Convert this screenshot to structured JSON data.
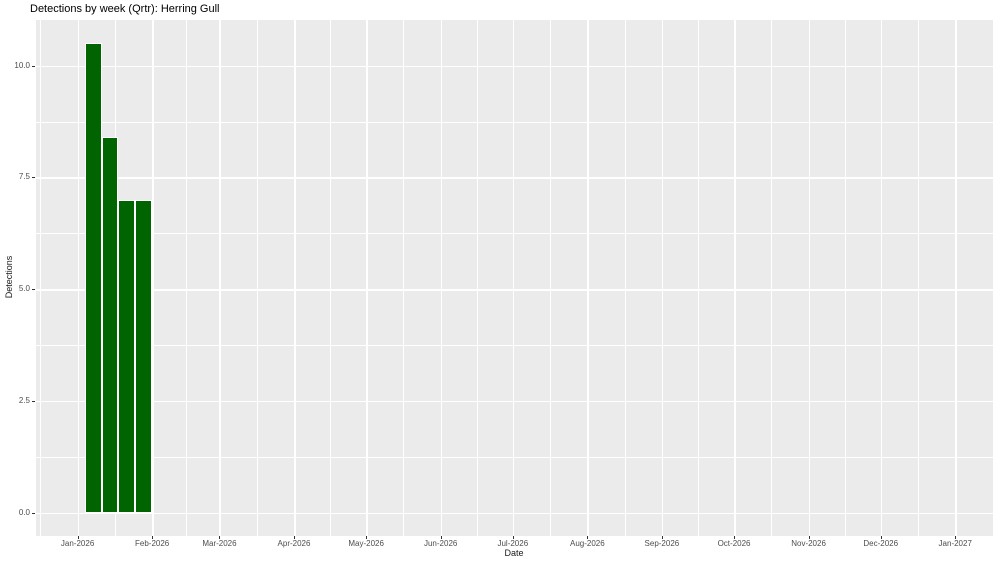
{
  "chart_data": {
    "type": "bar",
    "title": "Detections by week (Qrtr): Herring Gull",
    "xlabel": "Date",
    "ylabel": "Detections",
    "legend": "none",
    "grid": true,
    "panel_bg": "#EBEBEB",
    "grid_color": "#FFFFFF",
    "bar_fill": "#006400",
    "bar_stroke": "#FFFFFF",
    "tick_label_color": "#4D4D4D",
    "axis_title_color": "#1A1A1A",
    "ylim": [
      -0.525,
      11.025
    ],
    "xlim_days": [
      -17.3,
      380.7
    ],
    "bar_width_days": 7,
    "bars": [
      {
        "week_start": "2026-01-04",
        "day_offset": 3,
        "value": 10.5
      },
      {
        "week_start": "2026-01-11",
        "day_offset": 10,
        "value": 8.4
      },
      {
        "week_start": "2026-01-18",
        "day_offset": 17,
        "value": 7.0
      },
      {
        "week_start": "2026-01-25",
        "day_offset": 24,
        "value": 7.0
      }
    ],
    "x_ticks": [
      {
        "label": "Jan-2026",
        "day": 0
      },
      {
        "label": "Feb-2026",
        "day": 31
      },
      {
        "label": "Mar-2026",
        "day": 59
      },
      {
        "label": "Apr-2026",
        "day": 90
      },
      {
        "label": "May-2026",
        "day": 120
      },
      {
        "label": "Jun-2026",
        "day": 151
      },
      {
        "label": "Jul-2026",
        "day": 181
      },
      {
        "label": "Aug-2026",
        "day": 212
      },
      {
        "label": "Sep-2026",
        "day": 243
      },
      {
        "label": "Oct-2026",
        "day": 273
      },
      {
        "label": "Nov-2026",
        "day": 304
      },
      {
        "label": "Dec-2026",
        "day": 334
      },
      {
        "label": "Jan-2027",
        "day": 365
      }
    ],
    "y_ticks": [
      {
        "label": "0.0",
        "value": 0
      },
      {
        "label": "2.5",
        "value": 2.5
      },
      {
        "label": "5.0",
        "value": 5
      },
      {
        "label": "7.5",
        "value": 7.5
      },
      {
        "label": "10.0",
        "value": 10
      }
    ]
  }
}
